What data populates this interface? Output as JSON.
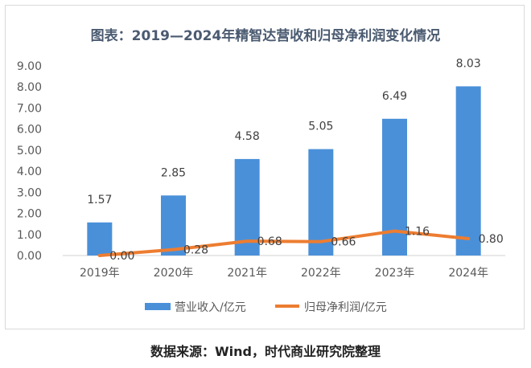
{
  "chart_data": {
    "type": "bar",
    "title": "图表：2019—2024年精智达营收和归母净利润变化情况",
    "categories": [
      "2019年",
      "2020年",
      "2021年",
      "2022年",
      "2023年",
      "2024年"
    ],
    "series": [
      {
        "name": "营业收入/亿元",
        "type": "bar",
        "values": [
          1.57,
          2.85,
          4.58,
          5.05,
          6.49,
          8.03
        ],
        "labels": [
          "1.57",
          "2.85",
          "4.58",
          "5.05",
          "6.49",
          "8.03"
        ]
      },
      {
        "name": "归母净利润/亿元",
        "type": "line",
        "values": [
          0.0,
          0.28,
          0.68,
          0.66,
          1.16,
          0.8
        ],
        "labels": [
          "0.00",
          "0.28",
          "0.68",
          "0.66",
          "1.16",
          "0.80"
        ]
      }
    ],
    "yticks": [
      "0.00",
      "1.00",
      "2.00",
      "3.00",
      "4.00",
      "5.00",
      "6.00",
      "7.00",
      "8.00",
      "9.00"
    ],
    "ylim": [
      0,
      9
    ],
    "grid": false,
    "legend": "bottom",
    "colors": {
      "bar": "#4a90d9",
      "line": "#ed7d31",
      "title": "#4a5a70",
      "axis_text": "#595959"
    }
  },
  "source_note": "数据来源：Wind，时代商业研究院整理"
}
